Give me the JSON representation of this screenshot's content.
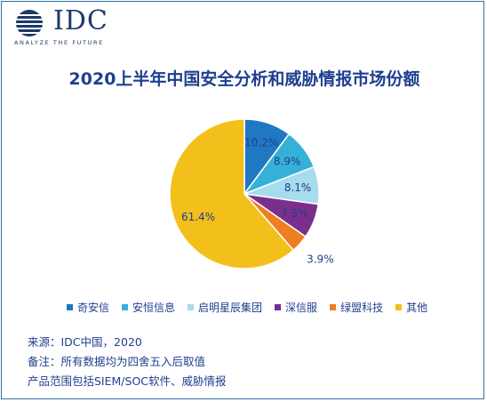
{
  "logo": {
    "name": "IDC",
    "tagline": "ANALYZE THE FUTURE"
  },
  "chart_data": {
    "type": "pie",
    "title": "2020上半年中国安全分析和威胁情报市场份额",
    "categories": [
      "奇安信",
      "安恒信息",
      "启明星辰集团",
      "深信服",
      "绿盟科技",
      "其他"
    ],
    "values": [
      10.2,
      8.9,
      8.1,
      7.5,
      3.9,
      61.4
    ],
    "value_labels": [
      "10.2%",
      "8.9%",
      "8.1%",
      "7.5%",
      "3.9%",
      "61.4%"
    ],
    "colors": [
      "#1f78c1",
      "#35b1d8",
      "#a6dcec",
      "#7b2f8c",
      "#ef7d22",
      "#f3bf1a"
    ],
    "legend_position": "bottom"
  },
  "notes": {
    "source": "来源：IDC中国，2020",
    "remark": "备注：所有数据均为四舍五入后取值",
    "scope": "产品范围包括SIEM/SOC软件、威胁情报"
  }
}
